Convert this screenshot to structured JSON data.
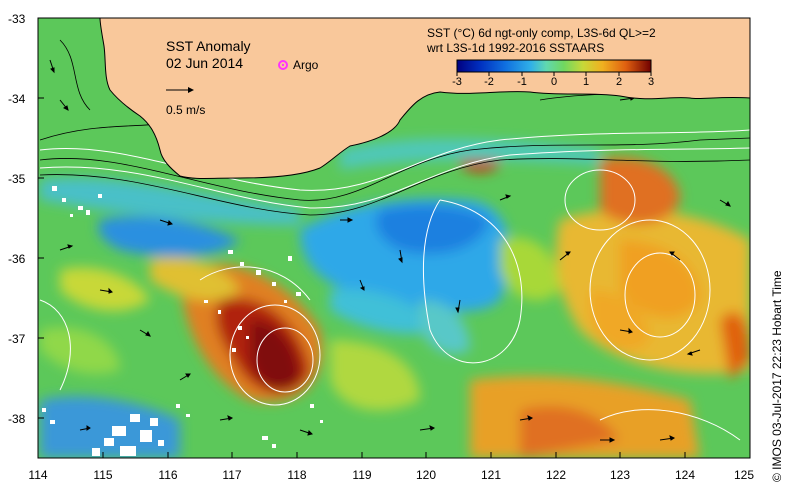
{
  "title": {
    "line1": "SST Anomaly",
    "line2": "02 Jun 2014"
  },
  "legend": {
    "argo_label": "Argo",
    "argo_color": "#ff33ff",
    "scale_label": "0.5 m/s"
  },
  "colorbar": {
    "title_line1": "SST (°C) 6d ngt-only comp, L3S-6d QL>=2",
    "title_line2": "wrt L3S-1d 1992-2016 SSTAARS",
    "ticks": [
      "-3",
      "-2",
      "-1",
      "0",
      "1",
      "2",
      "3"
    ],
    "colors": [
      "#000080",
      "#0030c0",
      "#1070e0",
      "#30a8f0",
      "#50d0e0",
      "#60d8a0",
      "#70d860",
      "#a0d840",
      "#e0d030",
      "#f0a020",
      "#e06010",
      "#b02008",
      "#700000"
    ]
  },
  "axes": {
    "y_ticks": [
      "-33",
      "-34",
      "-35",
      "-36",
      "-37",
      "-38"
    ],
    "x_ticks": [
      "114",
      "115",
      "116",
      "117",
      "118",
      "119",
      "120",
      "121",
      "122",
      "123",
      "124",
      "125"
    ]
  },
  "colors": {
    "land": "#f9c89b",
    "ocean_base": "#5cc85a",
    "missing": "#ffffff"
  },
  "credit": "© IMOS 03-Jul-2017 22:23 Hobart Time"
}
